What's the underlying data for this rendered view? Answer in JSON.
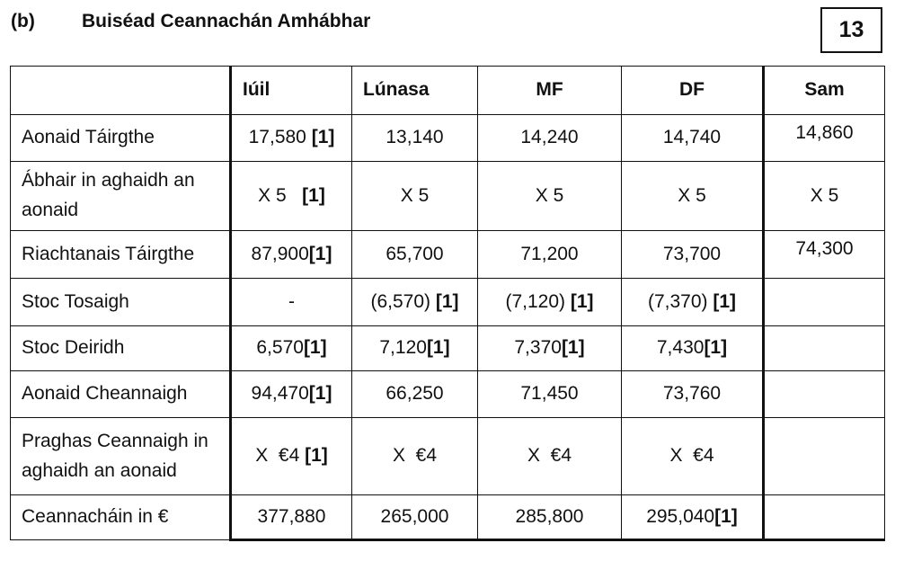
{
  "part_label": "(b)",
  "title": "Buiséad Ceannachán Amhábhar",
  "marks": "13",
  "columns": [
    "Iúil",
    "Lúnasa",
    "MF",
    "DF",
    "Sam"
  ],
  "rows": [
    {
      "label": "Aonaid Táirgthe",
      "cells": [
        {
          "value": "17,580 ",
          "mark": "[1]"
        },
        {
          "value": "13,140",
          "mark": ""
        },
        {
          "value": "14,240",
          "mark": ""
        },
        {
          "value": "14,740",
          "mark": ""
        },
        {
          "value": "14,860",
          "mark": ""
        }
      ]
    },
    {
      "label": "Ábhair in aghaidh an aonaid",
      "cells": [
        {
          "value": "X 5   ",
          "mark": "[1]"
        },
        {
          "value": "X 5",
          "mark": ""
        },
        {
          "value": "X 5",
          "mark": ""
        },
        {
          "value": "X 5",
          "mark": ""
        },
        {
          "value": "X 5",
          "mark": ""
        }
      ]
    },
    {
      "label": "Riachtanais Táirgthe",
      "cells": [
        {
          "value": "87,900",
          "mark": "[1]"
        },
        {
          "value": "65,700",
          "mark": ""
        },
        {
          "value": "71,200",
          "mark": ""
        },
        {
          "value": "73,700",
          "mark": ""
        },
        {
          "value": "74,300",
          "mark": ""
        }
      ]
    },
    {
      "label": "Stoc Tosaigh",
      "cells": [
        {
          "value": "-",
          "mark": ""
        },
        {
          "value": "(6,570) ",
          "mark": "[1]"
        },
        {
          "value": "(7,120) ",
          "mark": "[1]"
        },
        {
          "value": "(7,370) ",
          "mark": "[1]"
        },
        {
          "value": "",
          "mark": ""
        }
      ]
    },
    {
      "label": "Stoc Deiridh",
      "cells": [
        {
          "value": "6,570",
          "mark": "[1]"
        },
        {
          "value": "7,120",
          "mark": "[1]"
        },
        {
          "value": "7,370",
          "mark": "[1]"
        },
        {
          "value": "7,430",
          "mark": "[1]"
        },
        {
          "value": "",
          "mark": ""
        }
      ]
    },
    {
      "label": "Aonaid Cheannaigh",
      "cells": [
        {
          "value": "94,470",
          "mark": "[1]"
        },
        {
          "value": "66,250",
          "mark": ""
        },
        {
          "value": "71,450",
          "mark": ""
        },
        {
          "value": "73,760",
          "mark": ""
        },
        {
          "value": "",
          "mark": ""
        }
      ]
    },
    {
      "label": "Praghas Ceannaigh in aghaidh an aonaid",
      "cells": [
        {
          "value": "X  €4 ",
          "mark": "[1]"
        },
        {
          "value": "X  €4",
          "mark": ""
        },
        {
          "value": "X  €4",
          "mark": ""
        },
        {
          "value": "X  €4",
          "mark": ""
        },
        {
          "value": "",
          "mark": ""
        }
      ]
    },
    {
      "label": "Ceannacháin in €",
      "cells": [
        {
          "value": "377,880",
          "mark": ""
        },
        {
          "value": "265,000",
          "mark": ""
        },
        {
          "value": "285,800",
          "mark": ""
        },
        {
          "value": "295,040",
          "mark": "[1]"
        },
        {
          "value": "",
          "mark": ""
        }
      ]
    }
  ]
}
